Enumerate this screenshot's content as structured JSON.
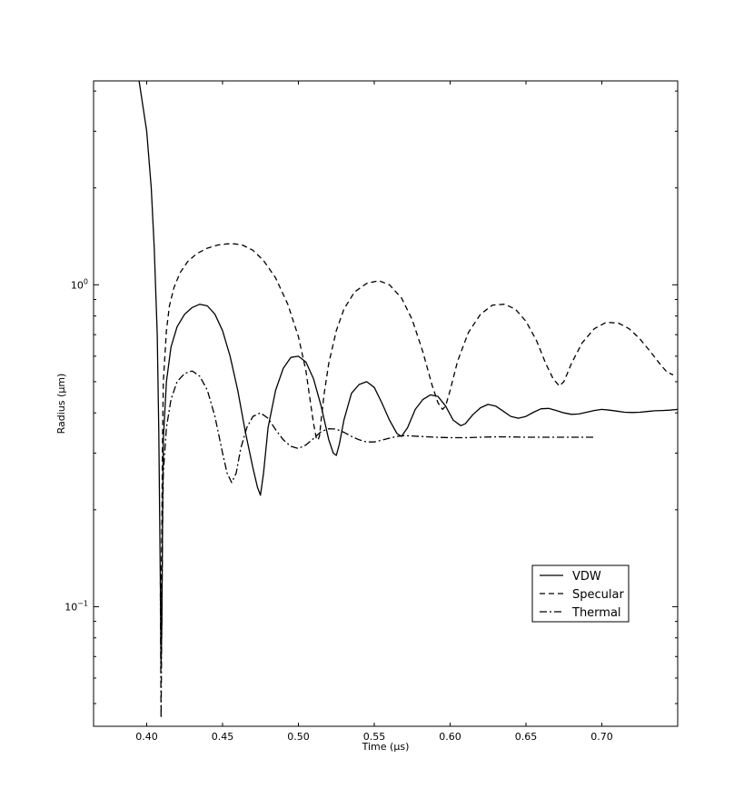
{
  "chart_data": {
    "type": "line",
    "title": "",
    "xlabel": "Time (µs)",
    "ylabel": "Radius (µm)",
    "xlim": [
      0.365,
      0.75
    ],
    "ylim": [
      0.0425,
      4.3
    ],
    "yscale": "log",
    "grid": false,
    "legend_position": "lower-right",
    "x_ticks": [
      {
        "value": 0.4,
        "label": "0.40"
      },
      {
        "value": 0.45,
        "label": "0.45"
      },
      {
        "value": 0.5,
        "label": "0.50"
      },
      {
        "value": 0.55,
        "label": "0.55"
      },
      {
        "value": 0.6,
        "label": "0.60"
      },
      {
        "value": 0.65,
        "label": "0.65"
      },
      {
        "value": 0.7,
        "label": "0.70"
      }
    ],
    "y_ticks": [
      {
        "value": 0.1,
        "base": "10",
        "exp": "−1"
      },
      {
        "value": 1.0,
        "base": "10",
        "exp": "0"
      }
    ],
    "y_minor_ticks": [
      0.05,
      0.06,
      0.07,
      0.08,
      0.09,
      0.2,
      0.3,
      0.4,
      0.5,
      0.6,
      0.7,
      0.8,
      0.9,
      2,
      3,
      4
    ],
    "series": [
      {
        "name": "VDW",
        "dash": "",
        "x": [
          0.395,
          0.4,
          0.403,
          0.405,
          0.407,
          0.408,
          0.409,
          0.4095,
          0.41,
          0.4105,
          0.411,
          0.413,
          0.416,
          0.42,
          0.425,
          0.43,
          0.435,
          0.44,
          0.445,
          0.45,
          0.455,
          0.46,
          0.465,
          0.47,
          0.473,
          0.475,
          0.477,
          0.48,
          0.485,
          0.49,
          0.495,
          0.5,
          0.505,
          0.51,
          0.515,
          0.52,
          0.523,
          0.525,
          0.527,
          0.53,
          0.535,
          0.54,
          0.545,
          0.55,
          0.555,
          0.56,
          0.565,
          0.568,
          0.572,
          0.577,
          0.582,
          0.587,
          0.592,
          0.597,
          0.602,
          0.607,
          0.61,
          0.615,
          0.62,
          0.625,
          0.63,
          0.635,
          0.64,
          0.645,
          0.65,
          0.655,
          0.66,
          0.665,
          0.67,
          0.675,
          0.68,
          0.685,
          0.69,
          0.695,
          0.7,
          0.705,
          0.71,
          0.715,
          0.72,
          0.725,
          0.73,
          0.735,
          0.74,
          0.745,
          0.75
        ],
        "y": [
          4.3,
          3.0,
          2.0,
          1.3,
          0.7,
          0.35,
          0.12,
          0.065,
          0.09,
          0.2,
          0.33,
          0.5,
          0.64,
          0.74,
          0.81,
          0.85,
          0.87,
          0.86,
          0.81,
          0.72,
          0.6,
          0.47,
          0.35,
          0.27,
          0.235,
          0.222,
          0.26,
          0.36,
          0.47,
          0.55,
          0.595,
          0.6,
          0.575,
          0.51,
          0.42,
          0.33,
          0.3,
          0.295,
          0.32,
          0.38,
          0.46,
          0.49,
          0.5,
          0.48,
          0.43,
          0.38,
          0.345,
          0.338,
          0.36,
          0.41,
          0.44,
          0.455,
          0.45,
          0.42,
          0.38,
          0.365,
          0.37,
          0.395,
          0.415,
          0.425,
          0.42,
          0.405,
          0.39,
          0.385,
          0.39,
          0.402,
          0.412,
          0.413,
          0.407,
          0.4,
          0.396,
          0.397,
          0.402,
          0.407,
          0.41,
          0.408,
          0.405,
          0.402,
          0.401,
          0.402,
          0.404,
          0.406,
          0.407,
          0.408,
          0.41
        ]
      },
      {
        "name": "Specular",
        "dash": "6,4",
        "x": [
          0.409,
          0.4095,
          0.41,
          0.4105,
          0.411,
          0.413,
          0.415,
          0.418,
          0.422,
          0.427,
          0.433,
          0.44,
          0.447,
          0.453,
          0.458,
          0.463,
          0.47,
          0.477,
          0.485,
          0.493,
          0.5,
          0.505,
          0.508,
          0.51,
          0.512,
          0.513,
          0.514,
          0.515,
          0.517,
          0.52,
          0.525,
          0.53,
          0.537,
          0.545,
          0.553,
          0.56,
          0.568,
          0.575,
          0.582,
          0.588,
          0.592,
          0.595,
          0.597,
          0.6,
          0.605,
          0.612,
          0.62,
          0.628,
          0.636,
          0.643,
          0.65,
          0.657,
          0.663,
          0.668,
          0.672,
          0.675,
          0.68,
          0.687,
          0.695,
          0.703,
          0.711,
          0.718,
          0.725,
          0.732,
          0.738,
          0.743,
          0.747
        ],
        "y": [
          0.12,
          0.09,
          0.18,
          0.35,
          0.5,
          0.72,
          0.86,
          0.98,
          1.09,
          1.18,
          1.25,
          1.3,
          1.33,
          1.34,
          1.34,
          1.33,
          1.28,
          1.19,
          1.05,
          0.87,
          0.69,
          0.54,
          0.43,
          0.37,
          0.33,
          0.33,
          0.34,
          0.38,
          0.46,
          0.57,
          0.72,
          0.84,
          0.95,
          1.01,
          1.03,
          1.0,
          0.91,
          0.78,
          0.62,
          0.49,
          0.43,
          0.41,
          0.42,
          0.47,
          0.58,
          0.71,
          0.81,
          0.865,
          0.87,
          0.84,
          0.77,
          0.67,
          0.57,
          0.51,
          0.485,
          0.5,
          0.57,
          0.66,
          0.73,
          0.765,
          0.76,
          0.73,
          0.68,
          0.62,
          0.57,
          0.535,
          0.525
        ]
      },
      {
        "name": "Thermal",
        "dash": "8,3,2,3",
        "x": [
          0.409,
          0.4095,
          0.41,
          0.4105,
          0.411,
          0.413,
          0.416,
          0.42,
          0.425,
          0.43,
          0.435,
          0.44,
          0.445,
          0.45,
          0.453,
          0.456,
          0.459,
          0.462,
          0.466,
          0.47,
          0.475,
          0.48,
          0.485,
          0.49,
          0.495,
          0.5,
          0.505,
          0.51,
          0.515,
          0.52,
          0.525,
          0.53,
          0.535,
          0.54,
          0.545,
          0.55,
          0.555,
          0.56,
          0.565,
          0.57,
          0.58,
          0.59,
          0.6,
          0.61,
          0.62,
          0.63,
          0.64,
          0.65,
          0.66,
          0.67,
          0.68,
          0.69,
          0.695
        ],
        "y": [
          0.11,
          0.045,
          0.1,
          0.18,
          0.26,
          0.36,
          0.44,
          0.5,
          0.53,
          0.54,
          0.52,
          0.47,
          0.39,
          0.3,
          0.26,
          0.243,
          0.26,
          0.31,
          0.36,
          0.39,
          0.4,
          0.385,
          0.355,
          0.33,
          0.315,
          0.31,
          0.318,
          0.333,
          0.35,
          0.357,
          0.356,
          0.348,
          0.338,
          0.33,
          0.325,
          0.325,
          0.329,
          0.334,
          0.338,
          0.34,
          0.338,
          0.336,
          0.335,
          0.335,
          0.336,
          0.337,
          0.337,
          0.336,
          0.336,
          0.336,
          0.336,
          0.336,
          0.336
        ]
      }
    ]
  }
}
